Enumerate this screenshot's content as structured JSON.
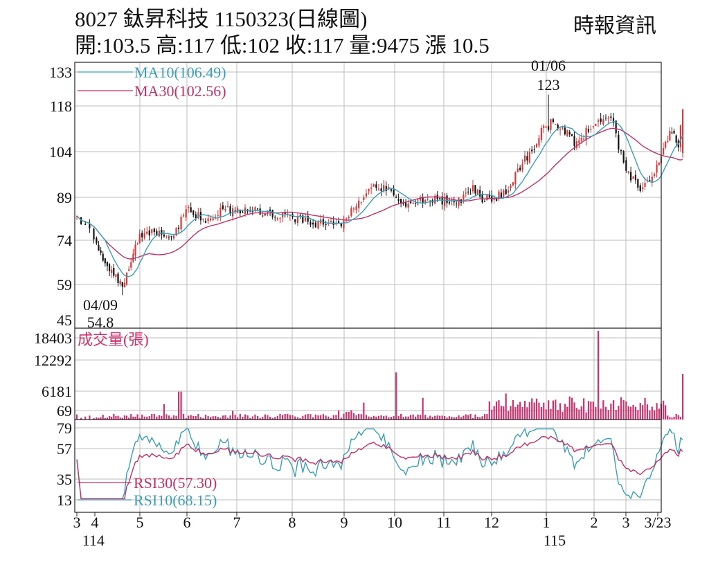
{
  "header": {
    "title": "8027 鈦昇科技 1150323(日線圖)",
    "source": "時報資訊",
    "stats": "開:103.5 高:117 低:102 收:117 量:9475 漲 10.5"
  },
  "chart_data": [
    {
      "type": "candlestick",
      "panel": "price",
      "y_ticks": [
        133,
        118,
        104,
        89,
        74,
        59,
        45
      ],
      "ylim": [
        45,
        133
      ],
      "legend": [
        {
          "label": "MA10(106.49)",
          "color": "#3a9fb5"
        },
        {
          "label": "MA30(102.56)",
          "color": "#c0306a"
        }
      ],
      "annotations": [
        {
          "date": "01/06",
          "value_label": "123",
          "value": 123
        },
        {
          "date": "04/09",
          "value_label": "54.8",
          "value": 54.8
        }
      ],
      "last_bar": {
        "open": 103.5,
        "high": 117,
        "low": 102,
        "close": 117
      },
      "close_path": [
        {
          "m": 0,
          "v": 82
        },
        {
          "m": 0.5,
          "v": 65
        },
        {
          "m": 0.9,
          "v": 58
        },
        {
          "m": 1.2,
          "v": 74
        },
        {
          "m": 1.6,
          "v": 78
        },
        {
          "m": 2.0,
          "v": 74
        },
        {
          "m": 2.3,
          "v": 86
        },
        {
          "m": 2.7,
          "v": 80
        },
        {
          "m": 3.0,
          "v": 84
        },
        {
          "m": 3.5,
          "v": 85
        },
        {
          "m": 4.0,
          "v": 83
        },
        {
          "m": 4.5,
          "v": 82
        },
        {
          "m": 5.0,
          "v": 80
        },
        {
          "m": 5.5,
          "v": 80
        },
        {
          "m": 6.0,
          "v": 91
        },
        {
          "m": 6.4,
          "v": 93
        },
        {
          "m": 6.7,
          "v": 87
        },
        {
          "m": 7.0,
          "v": 87
        },
        {
          "m": 7.5,
          "v": 88
        },
        {
          "m": 8.0,
          "v": 88
        },
        {
          "m": 8.3,
          "v": 92
        },
        {
          "m": 8.5,
          "v": 88
        },
        {
          "m": 9.0,
          "v": 90
        },
        {
          "m": 9.5,
          "v": 103
        },
        {
          "m": 9.8,
          "v": 110
        },
        {
          "m": 10.0,
          "v": 113
        },
        {
          "m": 10.2,
          "v": 112
        },
        {
          "m": 10.5,
          "v": 107
        },
        {
          "m": 11.0,
          "v": 112
        },
        {
          "m": 11.3,
          "v": 114
        },
        {
          "m": 11.6,
          "v": 98
        },
        {
          "m": 11.9,
          "v": 92
        },
        {
          "m": 12.2,
          "v": 96
        },
        {
          "m": 12.6,
          "v": 110
        },
        {
          "m": 12.8,
          "v": 106
        },
        {
          "m": 12.9,
          "v": 117
        }
      ],
      "ma10_value": 106.49,
      "ma30_value": 102.56
    },
    {
      "type": "bar",
      "panel": "volume",
      "title": "成交量(張)",
      "y_ticks": [
        18403,
        12292,
        6181,
        69
      ],
      "ylim": [
        0,
        18403
      ],
      "color": "#d0306c",
      "last_value": 9475,
      "peaks": [
        {
          "m": 1.8,
          "v": 3200
        },
        {
          "m": 2.15,
          "v": 5800
        },
        {
          "m": 3.25,
          "v": 1800
        },
        {
          "m": 5.95,
          "v": 3500
        },
        {
          "m": 6.65,
          "v": 9800
        },
        {
          "m": 7.2,
          "v": 4500
        },
        {
          "m": 9.0,
          "v": 5400
        },
        {
          "m": 9.6,
          "v": 4400
        },
        {
          "m": 11.05,
          "v": 18403
        },
        {
          "m": 12.95,
          "v": 9475
        }
      ]
    },
    {
      "type": "line",
      "panel": "rsi",
      "y_ticks": [
        79,
        57,
        35,
        13
      ],
      "ylim": [
        13,
        79
      ],
      "series": [
        {
          "name": "RSI30(57.30)",
          "color": "#c0306a",
          "last": 57.3
        },
        {
          "name": "RSI10(68.15)",
          "color": "#3a9fb5",
          "last": 68.15
        }
      ]
    }
  ],
  "x_axis": {
    "ticks": [
      {
        "m": 0,
        "label": "3"
      },
      {
        "m": 0.22,
        "label": "4"
      },
      {
        "m": 1.3,
        "label": "5"
      },
      {
        "m": 2.3,
        "label": "6"
      },
      {
        "m": 3.35,
        "label": "7"
      },
      {
        "m": 4.5,
        "label": "8"
      },
      {
        "m": 5.55,
        "label": "9"
      },
      {
        "m": 6.6,
        "label": "10"
      },
      {
        "m": 7.65,
        "label": "11"
      },
      {
        "m": 8.7,
        "label": "12"
      },
      {
        "m": 9.9,
        "label": "1"
      },
      {
        "m": 10.95,
        "label": "2"
      },
      {
        "m": 11.6,
        "label": "3"
      },
      {
        "m": 12.3,
        "label": "3/23"
      }
    ],
    "year_labels": [
      {
        "m": 0.1,
        "label": "114"
      },
      {
        "m": 9.9,
        "label": "115"
      }
    ]
  }
}
